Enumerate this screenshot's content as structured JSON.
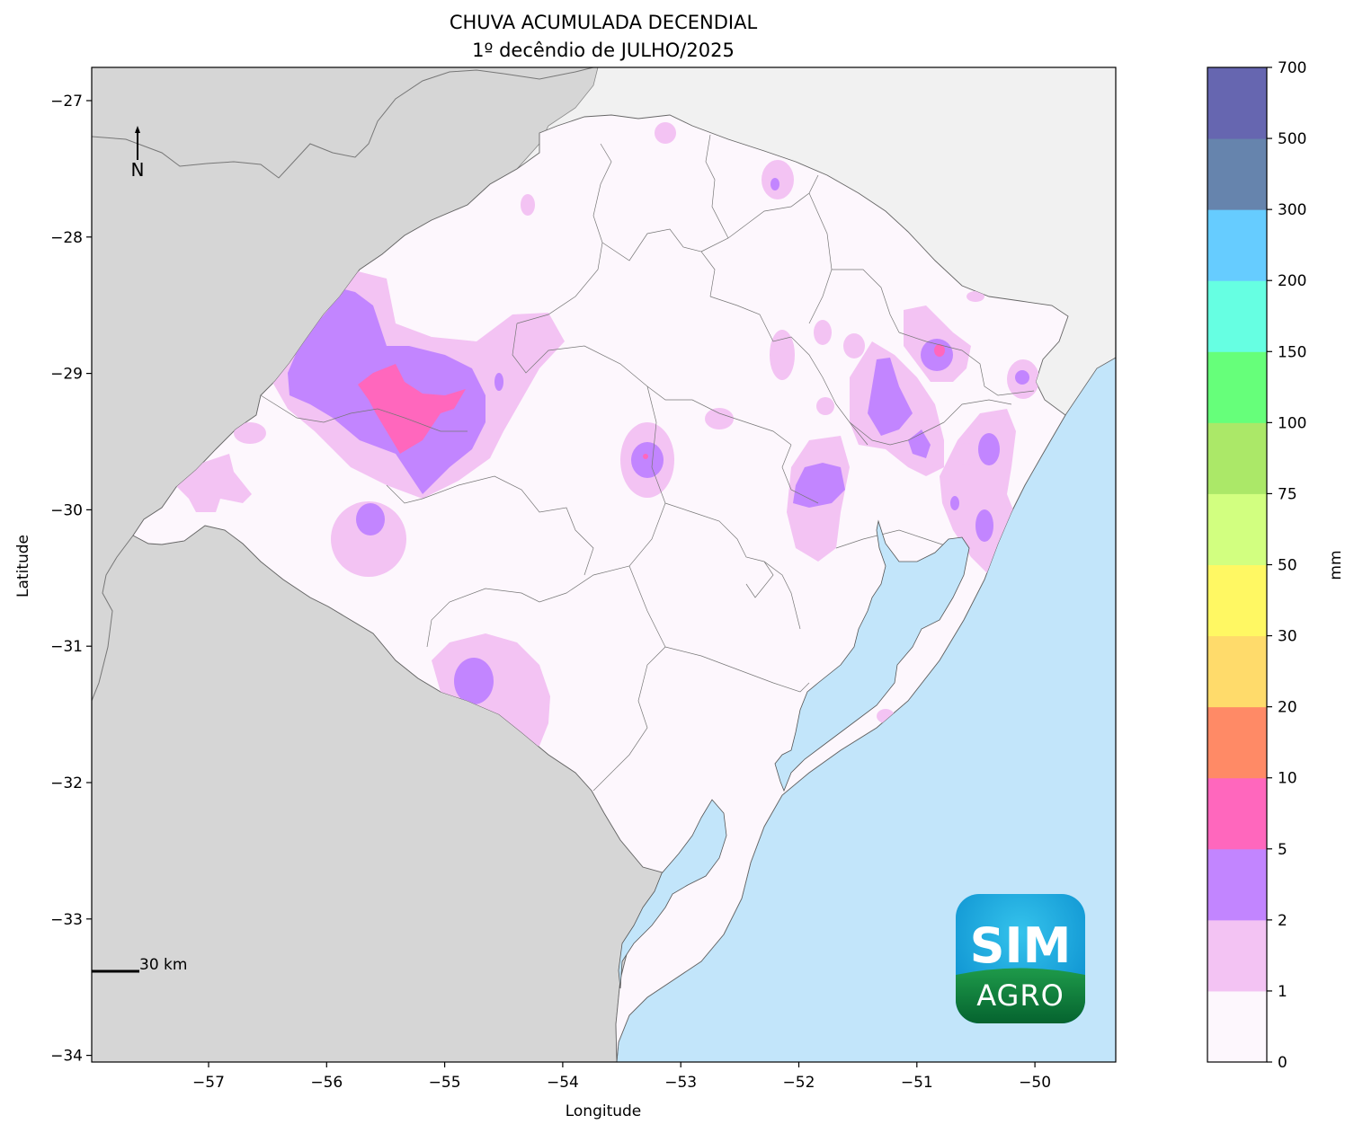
{
  "title_line1": "CHUVA ACUMULADA DECENDIAL",
  "title_line2": "1º decêndio de JULHO/2025",
  "xlabel": "Longitude",
  "ylabel": "Latitude",
  "x_ticks": [
    "−57",
    "−56",
    "−55",
    "−54",
    "−53",
    "−52",
    "−51",
    "−50"
  ],
  "y_ticks": [
    "−27",
    "−28",
    "−29",
    "−30",
    "−31",
    "−32",
    "−33",
    "−34"
  ],
  "north_label": "N",
  "scale_label": "30 km",
  "logo": {
    "top": "SIM",
    "bottom": "AGRO"
  },
  "colorbar": {
    "unit": "mm",
    "levels": [
      "0",
      "1",
      "2",
      "5",
      "10",
      "20",
      "30",
      "50",
      "75",
      "100",
      "150",
      "200",
      "300",
      "500",
      "700"
    ],
    "colors": [
      "#fdf7fd",
      "#f3c3f3",
      "#c285ff",
      "#ff67bd",
      "#ff8a66",
      "#ffdb6b",
      "#fff863",
      "#d2ff80",
      "#abe868",
      "#66ff7a",
      "#66ffe2",
      "#66ccff",
      "#6684ad",
      "#6666b0"
    ]
  },
  "colors": {
    "land_state": "#fdf7fd",
    "neighbor_land": "#d6d6d6",
    "north_land": "#f1f1f1",
    "water": "#c2e5fa",
    "border": "#777777"
  }
}
